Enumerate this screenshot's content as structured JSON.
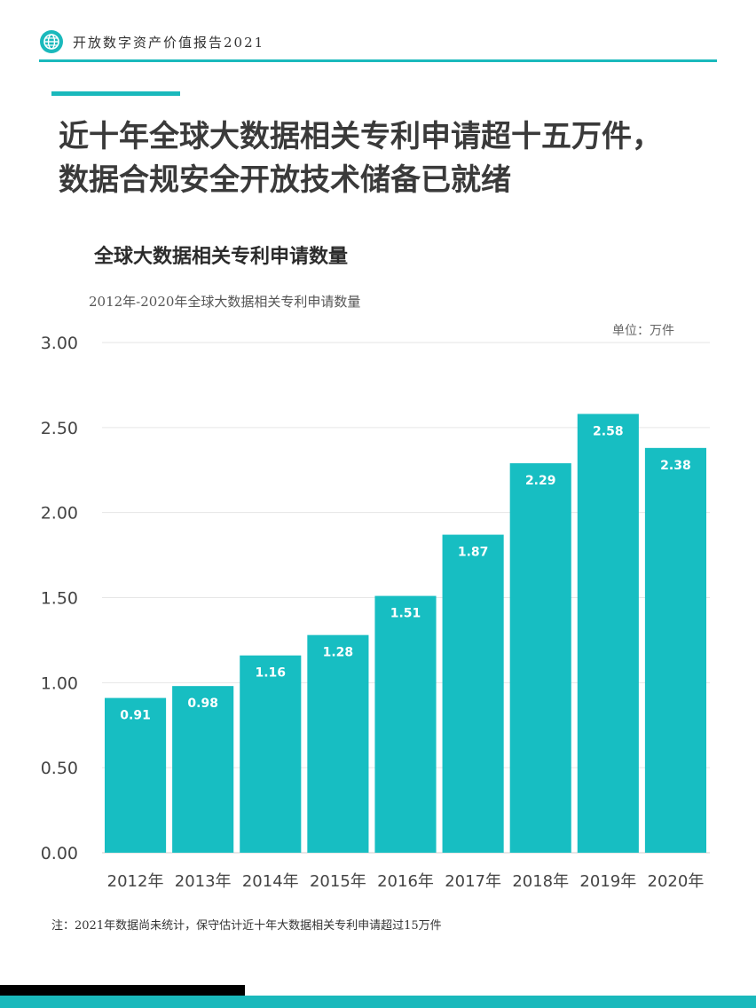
{
  "header": {
    "title": "开放数字资产价值报告2021",
    "logo_icon": "globe-icon"
  },
  "headline": {
    "line1": "近十年全球大数据相关专利申请超十五万件，",
    "line2": "数据合规安全开放技术储备已就绪"
  },
  "chart_heading": "全球大数据相关专利申请数量",
  "chart_subtitle": "2012年-2020年全球大数据相关专利申请数量",
  "unit": "单位：万件",
  "footnote": "注：2021年数据尚未统计，保守估计近十年大数据相关专利申请超过15万件",
  "colors": {
    "accent": "#1ab9bc",
    "bar": "#17bec2",
    "text": "#3a3a3a"
  },
  "chart_data": {
    "type": "bar",
    "title": "2012年-2020年全球大数据相关专利申请数量",
    "xlabel": "",
    "ylabel": "",
    "unit": "万件",
    "categories": [
      "2012年",
      "2013年",
      "2014年",
      "2015年",
      "2016年",
      "2017年",
      "2018年",
      "2019年",
      "2020年"
    ],
    "values": [
      0.91,
      0.98,
      1.16,
      1.28,
      1.51,
      1.87,
      2.29,
      2.58,
      2.38
    ],
    "value_labels": [
      "0.91",
      "0.98",
      "1.16",
      "1.28",
      "1.51",
      "1.87",
      "2.29",
      "2.58",
      "2.38"
    ],
    "ylim": [
      0,
      3
    ],
    "yticks": [
      "0.00",
      "0.50",
      "1.00",
      "1.50",
      "2.00",
      "2.50",
      "3.00"
    ],
    "ytick_values": [
      0,
      0.5,
      1,
      1.5,
      2,
      2.5,
      3
    ],
    "grid": true,
    "legend": "none"
  }
}
